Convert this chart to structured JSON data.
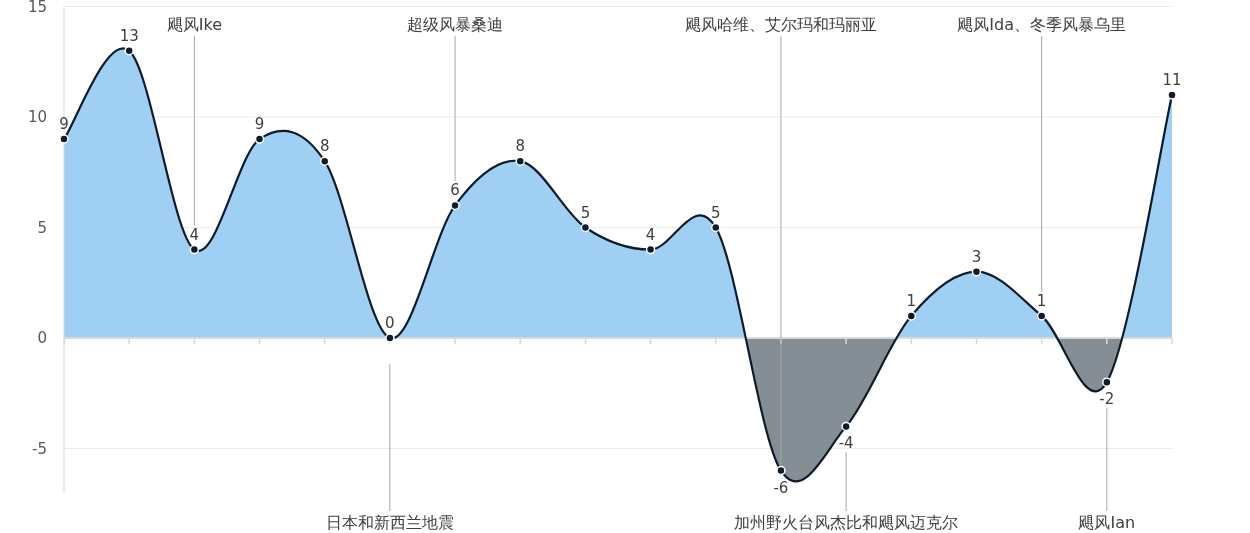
{
  "chart_data": {
    "type": "area",
    "categories": [
      null,
      null,
      "飓风Ike",
      null,
      null,
      "日本和新西兰地震",
      "超级风暴桑迪",
      null,
      null,
      null,
      null,
      "飓风哈维、艾尔玛和玛丽亚",
      "加州野火台风杰比和飓风迈克尔",
      null,
      null,
      "飓风Ida、冬季风暴乌里",
      "飓风Ian",
      null
    ],
    "series": [
      {
        "values": [
          9,
          13,
          4,
          9,
          8,
          0,
          6,
          8,
          5,
          4,
          5,
          -6,
          -4,
          1,
          3,
          1,
          -2,
          11
        ],
        "colors": [
          "#9fcff3",
          "#9fcff3",
          "#9fcff3",
          "#9fcff3",
          "#9fcff3",
          "#9fcff3",
          "#9fcff3",
          "#9fcff3",
          "#9fcff3",
          "#9fcff3",
          "#9fcff3",
          "#858d95",
          "#858d95",
          "#9fcff3",
          "#9fcff3",
          "#9fcff3",
          "#858d95",
          "#9fcff3"
        ]
      }
    ],
    "ylim": [
      -7,
      15
    ],
    "yticks": [
      -5,
      0,
      5,
      10,
      15
    ],
    "grid": "y",
    "data_labels": true,
    "marker": "circle"
  }
}
